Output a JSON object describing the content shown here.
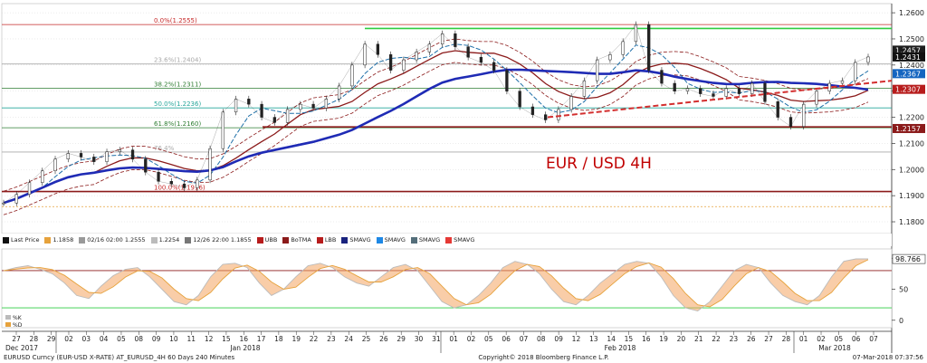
{
  "chart_data": [
    {
      "type": "line",
      "title": "EUR / USD 4H",
      "y_ticks": [
        1.18,
        1.19,
        1.2,
        1.21,
        1.22,
        1.23,
        1.24,
        1.25,
        1.26
      ],
      "ylim": [
        1.1755,
        1.2635
      ],
      "price_tags": [
        {
          "label": "1.2457",
          "value": 1.2457,
          "color": "#1c1c1c"
        },
        {
          "label": "1.2431",
          "value": 1.2431,
          "color": "#111111"
        },
        {
          "label": "1.2367",
          "value": 1.2367,
          "color": "#1565c0"
        },
        {
          "label": "1.2307",
          "value": 1.2307,
          "color": "#b71c1c"
        },
        {
          "label": "1.2157",
          "value": 1.2157,
          "color": "#8b1a1a"
        }
      ],
      "fib_levels": [
        {
          "label": "0.0%(1.2555)",
          "value": 1.2555,
          "color": "#c62828"
        },
        {
          "label": "23.6%(1.2404)",
          "value": 1.2404,
          "color": "#aaaaaa"
        },
        {
          "label": "38.2%(1.2311)",
          "value": 1.2311,
          "color": "#2e7d32"
        },
        {
          "label": "50.0%(1.2236)",
          "value": 1.2236,
          "color": "#26a69a"
        },
        {
          "label": "61.8%(1.2160)",
          "value": 1.216,
          "color": "#2e7d32"
        },
        {
          "label": "76.4%",
          "value": 1.2067,
          "color": "#aaaaaa"
        },
        {
          "label": "100.0%(1.1916)",
          "value": 1.1916,
          "color": "#c62828"
        }
      ],
      "horizontal_lines": [
        {
          "name": "resistance",
          "value": 1.254,
          "color": "#2ecc40"
        },
        {
          "name": "support",
          "value": 1.2163,
          "color": "#8b1a1a"
        },
        {
          "name": "support-low",
          "value": 1.1916,
          "color": "#8b1a1a"
        },
        {
          "name": "dotted-orange",
          "value": 1.1858,
          "color": "#e6a23c"
        }
      ],
      "day_labels": [
        "27",
        "28",
        "29",
        "02",
        "03",
        "04",
        "05",
        "08",
        "09",
        "10",
        "11",
        "12",
        "15",
        "16",
        "17",
        "18",
        "19",
        "22",
        "23",
        "24",
        "25",
        "26",
        "29",
        "30",
        "31",
        "01",
        "02",
        "05",
        "06",
        "07",
        "08",
        "09",
        "12",
        "13",
        "14",
        "15",
        "16",
        "19",
        "20",
        "21",
        "22",
        "23",
        "26",
        "27",
        "28",
        "01",
        "02",
        "05",
        "06",
        "07"
      ],
      "month_labels": [
        "Dec 2017",
        "Jan 2018",
        "Feb 2018",
        "Mar 2018"
      ],
      "price_series": [
        1.1872,
        1.1905,
        1.195,
        1.1995,
        1.204,
        1.2062,
        1.2048,
        1.203,
        1.2068,
        1.2075,
        1.204,
        1.199,
        1.1955,
        1.1945,
        1.193,
        1.196,
        1.208,
        1.222,
        1.227,
        1.225,
        1.22,
        1.218,
        1.223,
        1.225,
        1.2235,
        1.227,
        1.232,
        1.24,
        1.248,
        1.244,
        1.238,
        1.242,
        1.245,
        1.248,
        1.252,
        1.247,
        1.243,
        1.241,
        1.238,
        1.23,
        1.224,
        1.221,
        1.219,
        1.223,
        1.228,
        1.234,
        1.242,
        1.244,
        1.249,
        1.2555,
        1.238,
        1.233,
        1.23,
        1.231,
        1.229,
        1.228,
        1.231,
        1.229,
        1.233,
        1.226,
        1.22,
        1.2165,
        1.225,
        1.23,
        1.233,
        1.234,
        1.241,
        1.2431
      ],
      "legend": [
        {
          "label": "Last Price",
          "color": "#111111"
        },
        {
          "label": "1.1858",
          "color": "#e6a23c"
        },
        {
          "label": "02/16 02:00 1.2555",
          "color": "#999999"
        },
        {
          "label": "1.2254",
          "color": "#bbbbbb"
        },
        {
          "label": "12/26 22:00 1.1855",
          "color": "#777777"
        },
        {
          "label": "UBB",
          "color": "#b71c1c"
        },
        {
          "label": "BoTMA",
          "color": "#8b1a1a"
        },
        {
          "label": "LBB",
          "color": "#b71c1c"
        },
        {
          "label": "SMAVG",
          "color": "#1a237e"
        },
        {
          "label": "SMAVG",
          "color": "#1e88e5"
        },
        {
          "label": "SMAVG",
          "color": "#546e7a"
        },
        {
          "label": "SMAVG",
          "color": "#e53935"
        }
      ]
    },
    {
      "type": "line",
      "title": "",
      "y_ticks": [
        0,
        50,
        100
      ],
      "ylim": [
        -12,
        115
      ],
      "last_value_label": "98.766",
      "levels": [
        {
          "name": "overbought",
          "value": 80,
          "color": "#8b1a1a"
        },
        {
          "name": "oversold",
          "value": 20,
          "color": "#2ecc40"
        }
      ],
      "legend": [
        {
          "label": "%K",
          "color": "#bbbbbb"
        },
        {
          "label": "%D",
          "color": "#e6a23c"
        }
      ],
      "k_series": [
        80,
        85,
        88,
        82,
        75,
        60,
        40,
        35,
        55,
        72,
        82,
        85,
        70,
        50,
        30,
        25,
        40,
        70,
        90,
        92,
        85,
        60,
        40,
        50,
        70,
        88,
        92,
        85,
        70,
        60,
        55,
        70,
        85,
        90,
        80,
        55,
        30,
        20,
        25,
        40,
        60,
        85,
        95,
        90,
        75,
        50,
        30,
        25,
        40,
        60,
        75,
        90,
        95,
        92,
        70,
        40,
        20,
        15,
        30,
        55,
        80,
        90,
        85,
        60,
        40,
        30,
        25,
        40,
        70,
        95,
        99,
        99
      ]
    }
  ],
  "footer": {
    "left": "EURUSD Curncy (EUR-USD X-RATE) AT_EURUSD_4H 60 Days 240 Minutes",
    "center": "Copyright© 2018 Bloomberg Finance L.P.",
    "right": "07-Mar-2018 07:37:56"
  }
}
